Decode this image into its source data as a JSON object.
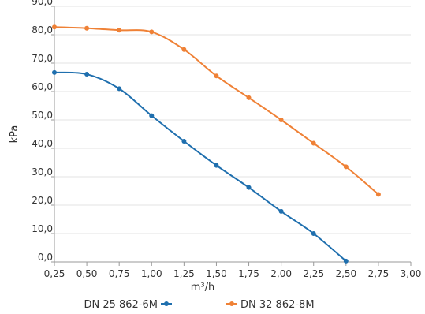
{
  "chart_data": {
    "type": "line",
    "xlabel": "m³/h",
    "ylabel": "kPa",
    "xlim": [
      0.25,
      3.0
    ],
    "ylim": [
      0,
      90
    ],
    "x_ticks": [
      "0,25",
      "0,50",
      "0,75",
      "1,00",
      "1,25",
      "1,50",
      "1,75",
      "2,00",
      "2,25",
      "2,50",
      "2,75",
      "3,00"
    ],
    "y_ticks": [
      "0,0",
      "10,0",
      "20,0",
      "30,0",
      "40,0",
      "50,0",
      "60,0",
      "70,0",
      "80,0",
      "90,0"
    ],
    "grid": "horizontal",
    "legend_position": "bottom",
    "series": [
      {
        "name": "DN 25 862-6M",
        "color": "#1f6fae",
        "points": [
          [
            0.25,
            66.7
          ],
          [
            0.5,
            66.1
          ],
          [
            0.75,
            61.0
          ],
          [
            1.0,
            51.5
          ],
          [
            1.25,
            42.5
          ],
          [
            1.5,
            34.0
          ],
          [
            1.75,
            26.2
          ],
          [
            2.0,
            17.8
          ],
          [
            2.25,
            10.0
          ],
          [
            2.5,
            0.3
          ]
        ]
      },
      {
        "name": "DN 32 862-8M",
        "color": "#ef8136",
        "points": [
          [
            0.25,
            82.7
          ],
          [
            0.5,
            82.3
          ],
          [
            0.75,
            81.6
          ],
          [
            1.0,
            81.0
          ],
          [
            1.25,
            74.8
          ],
          [
            1.5,
            65.5
          ],
          [
            1.75,
            57.8
          ],
          [
            2.0,
            50.0
          ],
          [
            2.25,
            41.8
          ],
          [
            2.5,
            33.5
          ],
          [
            2.75,
            23.8
          ]
        ]
      }
    ]
  }
}
